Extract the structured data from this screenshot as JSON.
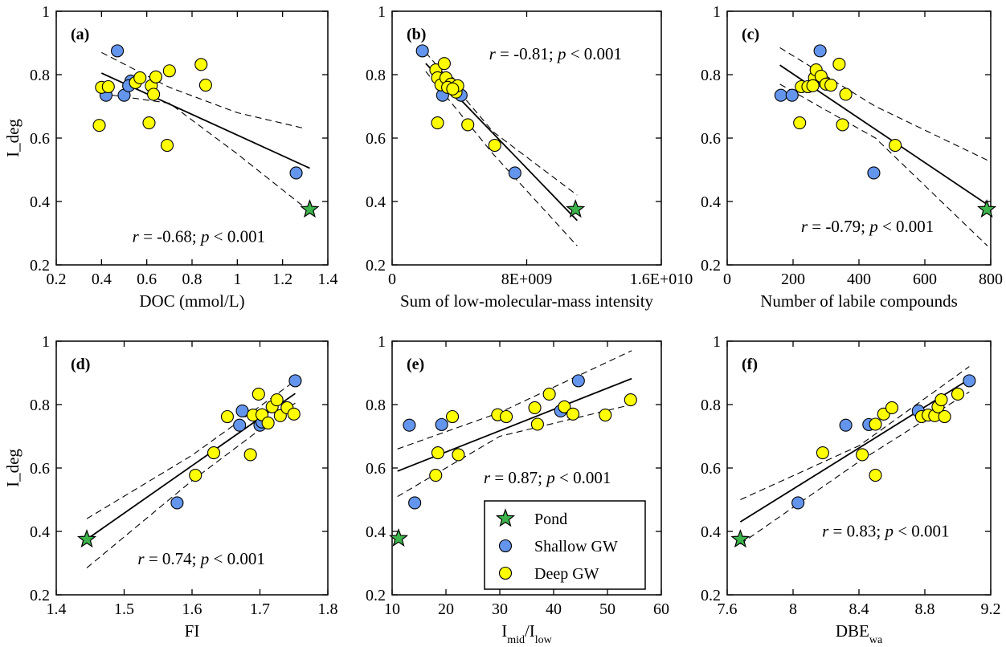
{
  "legend": {
    "entries": [
      {
        "label": "Pond",
        "group": "pond"
      },
      {
        "label": "Shallow GW",
        "group": "shallow"
      },
      {
        "label": "Deep GW",
        "group": "deep"
      }
    ]
  },
  "colors": {
    "pond": "#3cb44b",
    "shallow": "#6495ed",
    "deep": "#ffff00",
    "outline": "#000000"
  },
  "chart_data": [
    {
      "id": "a",
      "type": "scatter",
      "panel_label": "(a)",
      "xlabel": "DOC (mmol/L)",
      "ylabel": "I_deg",
      "xlim": [
        0.2,
        1.4
      ],
      "ylim": [
        0.2,
        1.0
      ],
      "xticks": [
        0.2,
        0.4,
        0.6,
        0.8,
        1.0,
        1.2,
        1.4
      ],
      "xtick_labels": [
        "0.2",
        "0.4",
        "0.6",
        "0.8",
        "1",
        "1.2",
        "1.4"
      ],
      "yticks": [
        0.2,
        0.4,
        0.6,
        0.8,
        1.0
      ],
      "ytick_labels": [
        "0.2",
        "0.4",
        "0.6",
        "0.8",
        "1"
      ],
      "stat": {
        "r": "r = -0.68;",
        "p": "p < 0.001"
      },
      "fit": {
        "x": [
          0.4,
          1.32
        ],
        "y": [
          0.805,
          0.505
        ]
      },
      "ci_upper": {
        "x": [
          0.4,
          0.7,
          1.0,
          1.3
        ],
        "y": [
          0.87,
          0.76,
          0.68,
          0.63
        ]
      },
      "ci_lower": {
        "x": [
          0.4,
          0.7,
          1.0,
          1.3
        ],
        "y": [
          0.74,
          0.71,
          0.55,
          0.38
        ]
      },
      "series": [
        {
          "group": "shallow",
          "name": "Shallow GW",
          "points": [
            [
              0.47,
              0.875
            ],
            [
              0.42,
              0.735
            ],
            [
              0.53,
              0.78
            ],
            [
              0.5,
              0.735
            ],
            [
              0.52,
              0.765
            ],
            [
              1.26,
              0.49
            ]
          ]
        },
        {
          "group": "deep",
          "name": "Deep GW",
          "points": [
            [
              0.39,
              0.64
            ],
            [
              0.4,
              0.76
            ],
            [
              0.43,
              0.762
            ],
            [
              0.55,
              0.775
            ],
            [
              0.57,
              0.79
            ],
            [
              0.61,
              0.648
            ],
            [
              0.62,
              0.765
            ],
            [
              0.63,
              0.738
            ],
            [
              0.64,
              0.793
            ],
            [
              0.69,
              0.577
            ],
            [
              0.7,
              0.812
            ],
            [
              0.84,
              0.832
            ],
            [
              0.86,
              0.767
            ]
          ]
        },
        {
          "group": "pond",
          "name": "Pond",
          "points": [
            [
              1.32,
              0.375
            ]
          ]
        }
      ]
    },
    {
      "id": "b",
      "type": "scatter",
      "panel_label": "(b)",
      "xlabel": "Sum of low-molecular-mass intensity",
      "ylabel": "",
      "xlim": [
        0,
        16000000000
      ],
      "ylim": [
        0.2,
        1.0
      ],
      "xticks": [
        0,
        8000000000,
        16000000000
      ],
      "xtick_labels": [
        "0",
        "8E+009",
        "1.6E+010"
      ],
      "yticks": [
        0.2,
        0.4,
        0.6,
        0.8,
        1.0
      ],
      "ytick_labels": [
        "0.2",
        "0.4",
        "0.6",
        "0.8",
        "1"
      ],
      "stat": {
        "r": "r = -0.81;",
        "p": "p < 0.001"
      },
      "fit": {
        "x": [
          2000000000,
          11000000000
        ],
        "y": [
          0.835,
          0.34
        ]
      },
      "ci_upper": {
        "x": [
          2000000000,
          6000000000,
          11000000000
        ],
        "y": [
          0.87,
          0.62,
          0.42
        ]
      },
      "ci_lower": {
        "x": [
          2000000000,
          6000000000,
          11000000000
        ],
        "y": [
          0.81,
          0.55,
          0.26
        ]
      },
      "series": [
        {
          "group": "shallow",
          "name": "Shallow GW",
          "points": [
            [
              1800000000,
              0.875
            ],
            [
              3200000000,
              0.785
            ],
            [
              3000000000,
              0.735
            ],
            [
              4100000000,
              0.735
            ],
            [
              3400000000,
              0.775
            ],
            [
              7300000000,
              0.49
            ]
          ]
        },
        {
          "group": "deep",
          "name": "Deep GW",
          "points": [
            [
              2600000000,
              0.815
            ],
            [
              2700000000,
              0.79
            ],
            [
              2900000000,
              0.768
            ],
            [
              3100000000,
              0.835
            ],
            [
              3200000000,
              0.79
            ],
            [
              3500000000,
              0.77
            ],
            [
              3800000000,
              0.745
            ],
            [
              3900000000,
              0.765
            ],
            [
              2700000000,
              0.648
            ],
            [
              4500000000,
              0.642
            ],
            [
              6100000000,
              0.577
            ],
            [
              3300000000,
              0.76
            ],
            [
              3600000000,
              0.755
            ]
          ]
        },
        {
          "group": "pond",
          "name": "Pond",
          "points": [
            [
              10900000000,
              0.375
            ]
          ]
        }
      ]
    },
    {
      "id": "c",
      "type": "scatter",
      "panel_label": "(c)",
      "xlabel": "Number of labile compounds",
      "ylabel": "",
      "xlim": [
        0,
        800
      ],
      "ylim": [
        0.2,
        1.0
      ],
      "xticks": [
        0,
        200,
        400,
        600,
        800
      ],
      "xtick_labels": [
        "0",
        "200",
        "400",
        "600",
        "800"
      ],
      "yticks": [
        0.2,
        0.4,
        0.6,
        0.8,
        1.0
      ],
      "ytick_labels": [
        "0.2",
        "0.4",
        "0.6",
        "0.8",
        "1"
      ],
      "stat": {
        "r": "r = -0.79;",
        "p": "p < 0.001"
      },
      "fit": {
        "x": [
          160,
          790
        ],
        "y": [
          0.83,
          0.39
        ]
      },
      "ci_upper": {
        "x": [
          160,
          450,
          790
        ],
        "y": [
          0.885,
          0.7,
          0.53
        ]
      },
      "ci_lower": {
        "x": [
          160,
          450,
          790
        ],
        "y": [
          0.77,
          0.6,
          0.26
        ]
      },
      "series": [
        {
          "group": "shallow",
          "name": "Shallow GW",
          "points": [
            [
              163,
              0.735
            ],
            [
              197,
              0.735
            ],
            [
              270,
              0.78
            ],
            [
              282,
              0.875
            ],
            [
              280,
              0.79
            ],
            [
              445,
              0.49
            ]
          ]
        },
        {
          "group": "deep",
          "name": "Deep GW",
          "points": [
            [
              220,
              0.648
            ],
            [
              225,
              0.762
            ],
            [
              245,
              0.762
            ],
            [
              265,
              0.79
            ],
            [
              270,
              0.815
            ],
            [
              285,
              0.795
            ],
            [
              300,
              0.77
            ],
            [
              315,
              0.767
            ],
            [
              340,
              0.833
            ],
            [
              350,
              0.642
            ],
            [
              360,
              0.738
            ],
            [
              510,
              0.577
            ],
            [
              260,
              0.765
            ]
          ]
        },
        {
          "group": "pond",
          "name": "Pond",
          "points": [
            [
              788,
              0.375
            ]
          ]
        }
      ]
    },
    {
      "id": "d",
      "type": "scatter",
      "panel_label": "(d)",
      "xlabel": "FI",
      "ylabel": "I_deg",
      "xlim": [
        1.4,
        1.8
      ],
      "ylim": [
        0.2,
        1.0
      ],
      "xticks": [
        1.4,
        1.5,
        1.6,
        1.7,
        1.8
      ],
      "xtick_labels": [
        "1.4",
        "1.5",
        "1.6",
        "1.7",
        "1.8"
      ],
      "yticks": [
        0.2,
        0.4,
        0.6,
        0.8,
        1.0
      ],
      "ytick_labels": [
        "0.2",
        "0.4",
        "0.6",
        "0.8",
        "1"
      ],
      "stat": {
        "r": "r = 0.74;",
        "p": "p < 0.001"
      },
      "fit": {
        "x": [
          1.445,
          1.752
        ],
        "y": [
          0.375,
          0.835
        ]
      },
      "ci_upper": {
        "x": [
          1.445,
          1.6,
          1.752
        ],
        "y": [
          0.44,
          0.64,
          0.875
        ]
      },
      "ci_lower": {
        "x": [
          1.445,
          1.6,
          1.752
        ],
        "y": [
          0.285,
          0.56,
          0.805
        ]
      },
      "series": [
        {
          "group": "shallow",
          "name": "Shallow GW",
          "points": [
            [
              1.578,
              0.49
            ],
            [
              1.67,
              0.735
            ],
            [
              1.674,
              0.78
            ],
            [
              1.7,
              0.735
            ],
            [
              1.752,
              0.875
            ],
            [
              1.703,
              0.745
            ]
          ]
        },
        {
          "group": "deep",
          "name": "Deep GW",
          "points": [
            [
              1.605,
              0.577
            ],
            [
              1.632,
              0.648
            ],
            [
              1.652,
              0.762
            ],
            [
              1.686,
              0.642
            ],
            [
              1.69,
              0.767
            ],
            [
              1.698,
              0.833
            ],
            [
              1.703,
              0.768
            ],
            [
              1.712,
              0.742
            ],
            [
              1.718,
              0.793
            ],
            [
              1.725,
              0.815
            ],
            [
              1.73,
              0.765
            ],
            [
              1.74,
              0.79
            ],
            [
              1.75,
              0.77
            ]
          ]
        },
        {
          "group": "pond",
          "name": "Pond",
          "points": [
            [
              1.445,
              0.375
            ]
          ]
        }
      ]
    },
    {
      "id": "e",
      "type": "scatter",
      "panel_label": "(e)",
      "xlabel": "I_mid/I_low",
      "ylabel": "",
      "xlim": [
        10,
        60
      ],
      "ylim": [
        0.2,
        1.0
      ],
      "xticks": [
        10,
        20,
        30,
        40,
        50,
        60
      ],
      "xtick_labels": [
        "10",
        "20",
        "30",
        "40",
        "50",
        "60"
      ],
      "yticks": [
        0.2,
        0.4,
        0.6,
        0.8,
        1.0
      ],
      "ytick_labels": [
        "0.2",
        "0.4",
        "0.6",
        "0.8",
        "1"
      ],
      "stat": {
        "r": "r = 0.87;",
        "p": "p < 0.001"
      },
      "fit": {
        "x": [
          11,
          54.5
        ],
        "y": [
          0.59,
          0.882
        ]
      },
      "ci_upper": {
        "x": [
          11,
          30,
          54.5
        ],
        "y": [
          0.66,
          0.775,
          0.97
        ]
      },
      "ci_lower": {
        "x": [
          11,
          30,
          54.5
        ],
        "y": [
          0.51,
          0.7,
          0.8
        ]
      },
      "series": [
        {
          "group": "shallow",
          "name": "Shallow GW",
          "points": [
            [
              13.2,
              0.735
            ],
            [
              14.2,
              0.49
            ],
            [
              19.2,
              0.737
            ],
            [
              41.3,
              0.78
            ],
            [
              44.6,
              0.875
            ]
          ]
        },
        {
          "group": "deep",
          "name": "Deep GW",
          "points": [
            [
              18.1,
              0.577
            ],
            [
              18.5,
              0.648
            ],
            [
              21.2,
              0.762
            ],
            [
              22.3,
              0.642
            ],
            [
              29.6,
              0.768
            ],
            [
              31.2,
              0.762
            ],
            [
              36.5,
              0.79
            ],
            [
              37.0,
              0.738
            ],
            [
              39.2,
              0.833
            ],
            [
              42.0,
              0.793
            ],
            [
              43.6,
              0.77
            ],
            [
              49.6,
              0.767
            ],
            [
              54.3,
              0.815
            ]
          ]
        },
        {
          "group": "pond",
          "name": "Pond",
          "points": [
            [
              11.2,
              0.378
            ]
          ]
        }
      ]
    },
    {
      "id": "f",
      "type": "scatter",
      "panel_label": "(f)",
      "xlabel": "DBE_wa",
      "ylabel": "",
      "xlim": [
        7.6,
        9.2
      ],
      "ylim": [
        0.2,
        1.0
      ],
      "xticks": [
        7.6,
        8.0,
        8.4,
        8.8,
        9.2
      ],
      "xtick_labels": [
        "7.6",
        "8",
        "8.4",
        "8.8",
        "9.2"
      ],
      "yticks": [
        0.2,
        0.4,
        0.6,
        0.8,
        1.0
      ],
      "ytick_labels": [
        "0.2",
        "0.4",
        "0.6",
        "0.8",
        "1"
      ],
      "stat": {
        "r": "r = 0.83;",
        "p": "p < 0.001"
      },
      "fit": {
        "x": [
          7.68,
          9.07
        ],
        "y": [
          0.43,
          0.88
        ]
      },
      "ci_upper": {
        "x": [
          7.68,
          8.4,
          9.07
        ],
        "y": [
          0.5,
          0.67,
          0.92
        ]
      },
      "ci_lower": {
        "x": [
          7.68,
          8.4,
          9.07
        ],
        "y": [
          0.36,
          0.62,
          0.84
        ]
      },
      "series": [
        {
          "group": "shallow",
          "name": "Shallow GW",
          "points": [
            [
              8.03,
              0.49
            ],
            [
              8.32,
              0.735
            ],
            [
              8.46,
              0.737
            ],
            [
              8.76,
              0.78
            ],
            [
              9.07,
              0.875
            ]
          ]
        },
        {
          "group": "deep",
          "name": "Deep GW",
          "points": [
            [
              8.18,
              0.648
            ],
            [
              8.42,
              0.642
            ],
            [
              8.5,
              0.577
            ],
            [
              8.5,
              0.738
            ],
            [
              8.55,
              0.77
            ],
            [
              8.6,
              0.79
            ],
            [
              8.78,
              0.762
            ],
            [
              8.82,
              0.767
            ],
            [
              8.86,
              0.765
            ],
            [
              8.88,
              0.793
            ],
            [
              8.9,
              0.815
            ],
            [
              8.92,
              0.762
            ],
            [
              9.0,
              0.833
            ]
          ]
        },
        {
          "group": "pond",
          "name": "Pond",
          "points": [
            [
              7.68,
              0.375
            ]
          ]
        }
      ]
    }
  ]
}
